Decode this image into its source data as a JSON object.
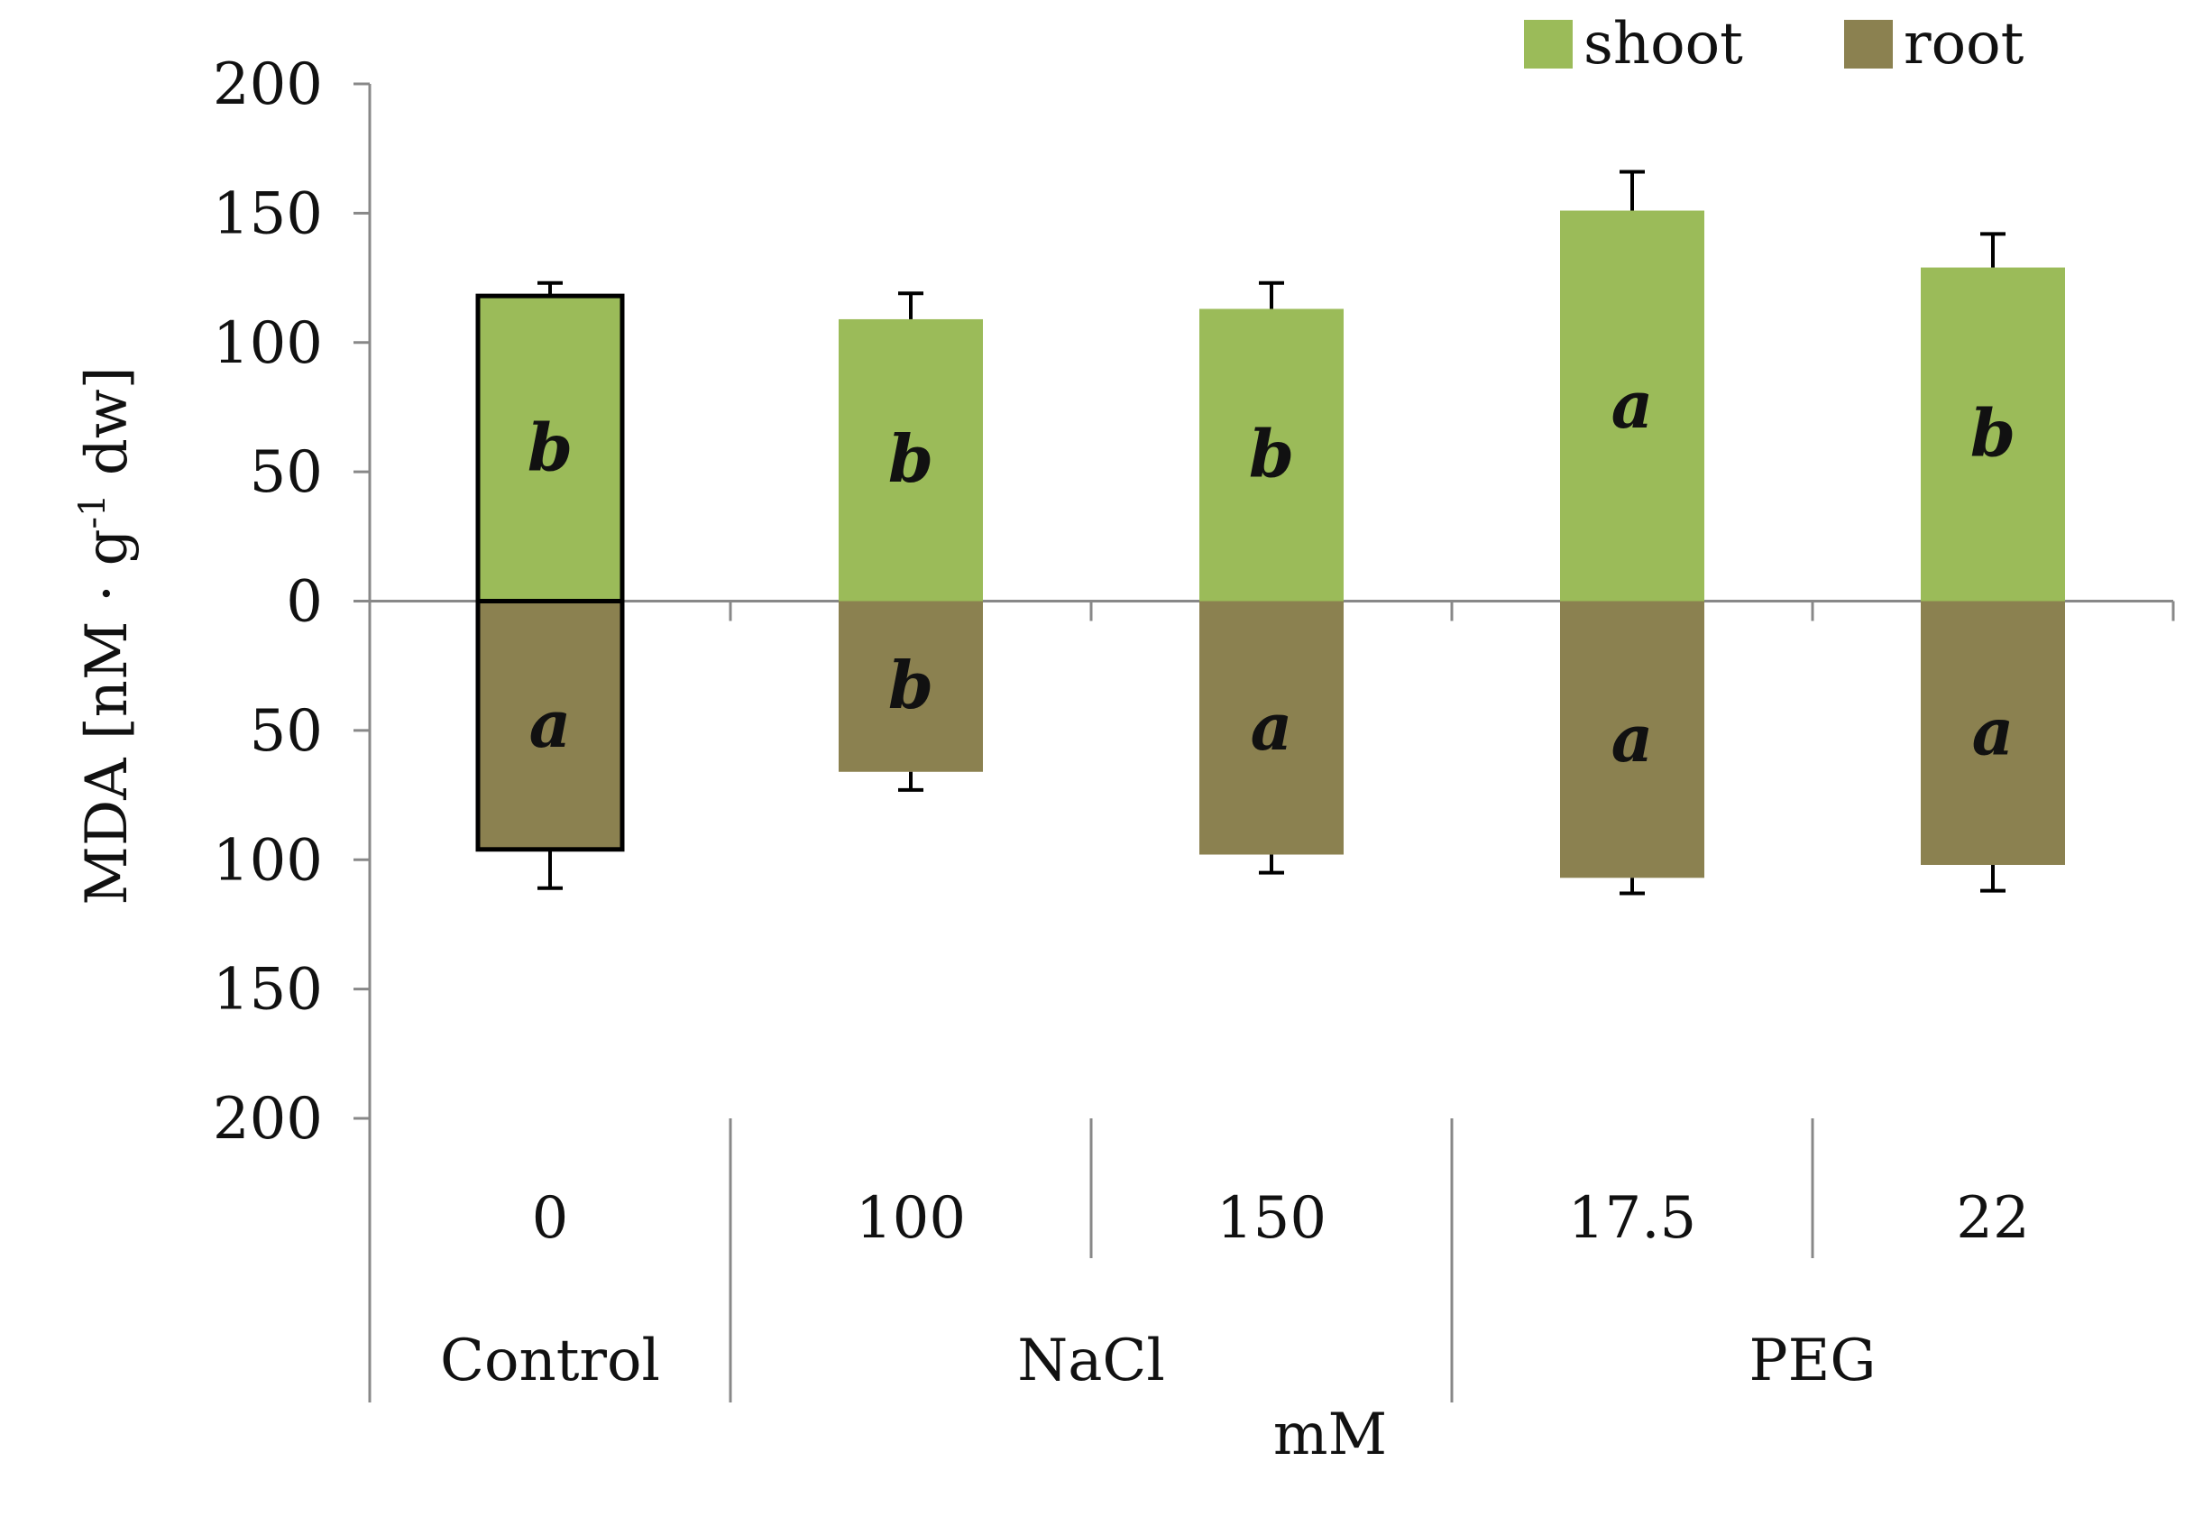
{
  "chart_data": {
    "type": "bar",
    "subtype": "diverging-stacked",
    "ylabel": "MDA [nM · g⁻¹ dw]",
    "ylabel_parts": {
      "main": "MDA [nM · g",
      "sup": "-1",
      "tail": "dw]"
    },
    "xlabel": "mM",
    "ylim": [
      -200,
      200
    ],
    "yticks": [
      200,
      150,
      100,
      50,
      0,
      50,
      100,
      150,
      200
    ],
    "ytick_values": [
      200,
      150,
      100,
      50,
      0,
      -50,
      -100,
      -150,
      -200
    ],
    "categories": [
      "0",
      "100",
      "150",
      "17.5",
      "22"
    ],
    "groups": [
      {
        "label": "Control",
        "span": [
          0,
          0
        ]
      },
      {
        "label": "NaCl",
        "span": [
          1,
          2
        ]
      },
      {
        "label": "PEG",
        "span": [
          3,
          4
        ]
      }
    ],
    "series": [
      {
        "name": "shoot",
        "color": "#9bbb59",
        "values": [
          118,
          109,
          113,
          151,
          129
        ],
        "errors": [
          5,
          10,
          10,
          15,
          13
        ],
        "letters": [
          "b",
          "b",
          "b",
          "a",
          "b"
        ]
      },
      {
        "name": "root",
        "color": "#8b8150",
        "values": [
          96,
          66,
          98,
          107,
          102
        ],
        "errors": [
          15,
          7,
          7,
          6,
          10
        ],
        "letters": [
          "a",
          "b",
          "a",
          "a",
          "a"
        ]
      }
    ],
    "highlight_category": 0,
    "legend_position": "top-right"
  }
}
